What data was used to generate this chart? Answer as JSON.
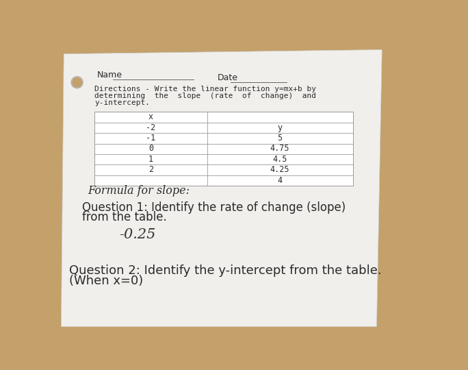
{
  "bg_color": "#c4a06a",
  "paper_color": "#f0efec",
  "name_label": "Name",
  "date_label": "Date",
  "directions_lines": [
    "Directions - Write the linear function y=mx+b by",
    "determining  the  slope  (rate  of  change)  and",
    "y-intercept."
  ],
  "table_x_vals": [
    "x",
    "-2",
    "-1",
    "0",
    "1",
    "2"
  ],
  "table_y_vals": [
    "y",
    "5",
    "4.75",
    "4.5",
    "4.25",
    "4"
  ],
  "formula_label": "Formula for slope:",
  "q1_line1": "Question 1: Identify the rate of change (slope)",
  "q1_line2": "from the table.",
  "q1_answer": "-0.25",
  "q2_line1": "Question 2: Identify the y-intercept from the table.",
  "q2_line2": "(When x=0)",
  "text_color": "#2a2a2a",
  "light_text": "#555555",
  "table_line_color": "#999999",
  "hole_color": "#b5a898",
  "hole_inner": "#c4a06a",
  "wood_top_left": "#c8a870",
  "wood_top_right": "#b89a60"
}
